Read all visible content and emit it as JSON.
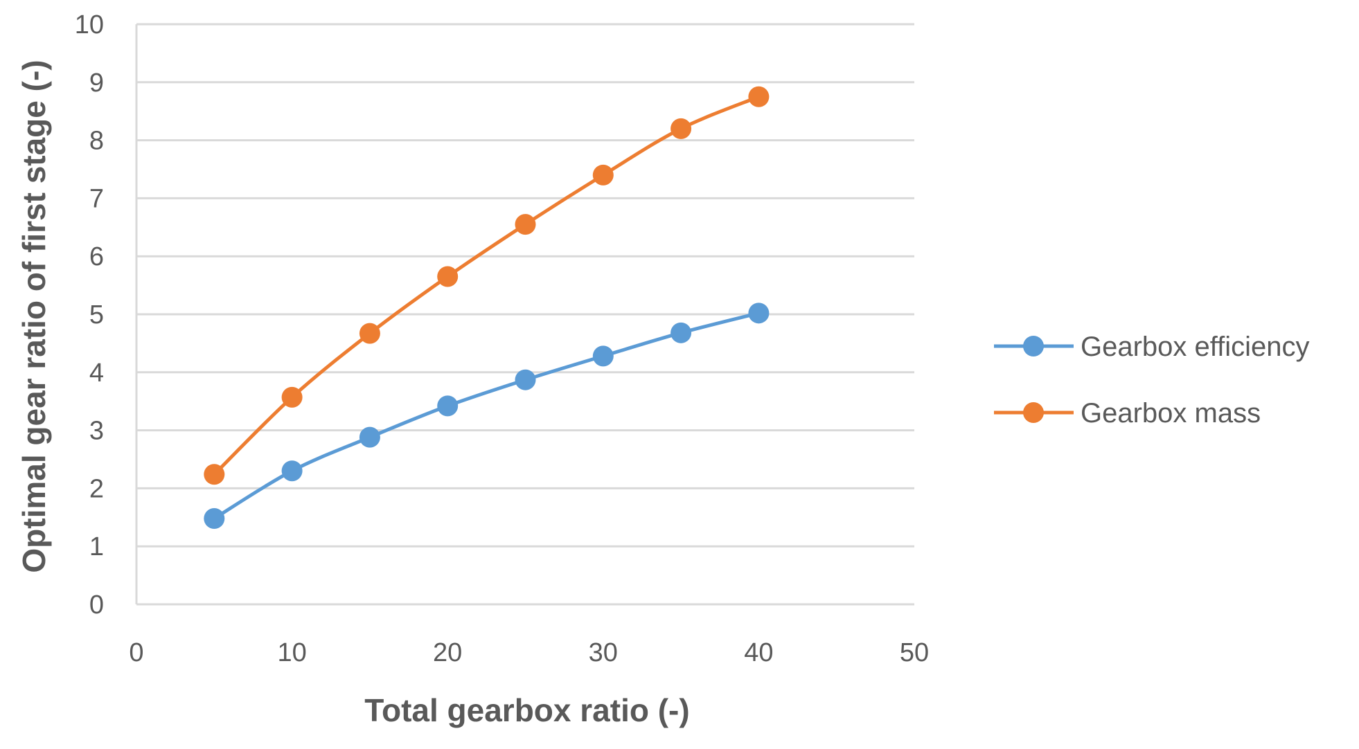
{
  "chart_data": {
    "type": "line",
    "title": "",
    "xlabel": "Total gearbox ratio (-)",
    "ylabel": "Optimal gear ratio of first stage (-)",
    "xlim": [
      0,
      50
    ],
    "ylim": [
      0,
      10
    ],
    "x_ticks": [
      0,
      10,
      20,
      30,
      40,
      50
    ],
    "y_ticks": [
      0,
      1,
      2,
      3,
      4,
      5,
      6,
      7,
      8,
      9,
      10
    ],
    "grid": "horizontal",
    "legend_position": "right",
    "x": [
      5,
      10,
      15,
      20,
      25,
      30,
      35,
      40
    ],
    "series": [
      {
        "name": "Gearbox efficiency",
        "color": "#5B9BD5",
        "values": [
          1.48,
          2.3,
          2.88,
          3.42,
          3.87,
          4.28,
          4.68,
          5.02
        ]
      },
      {
        "name": "Gearbox mass",
        "color": "#ED7D31",
        "values": [
          2.24,
          3.57,
          4.67,
          5.65,
          6.55,
          7.4,
          8.2,
          8.75
        ]
      }
    ]
  }
}
